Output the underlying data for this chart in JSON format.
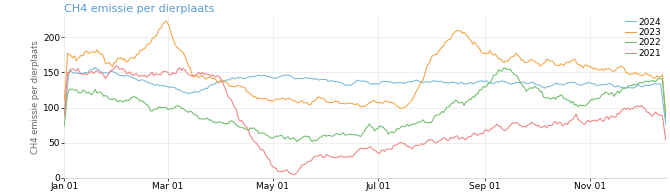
{
  "title": "CH4 emissie per dierplaats",
  "ylabel": "CH4 emissie per dierplaats",
  "ylim": [
    0,
    230
  ],
  "yticks": [
    0,
    50,
    100,
    150,
    200
  ],
  "legend": [
    "2024",
    "2023",
    "2022",
    "2021"
  ],
  "colors": {
    "2024": "#7ab8d9",
    "2023": "#f5a442",
    "2022": "#6cbd6c",
    "2021": "#f08080"
  },
  "title_color": "#5a9bd4",
  "title_fontsize": 8.0,
  "axis_fontsize": 6.5,
  "legend_fontsize": 6.5,
  "background_color": "#ffffff",
  "grid_color": "#e8e8e8"
}
